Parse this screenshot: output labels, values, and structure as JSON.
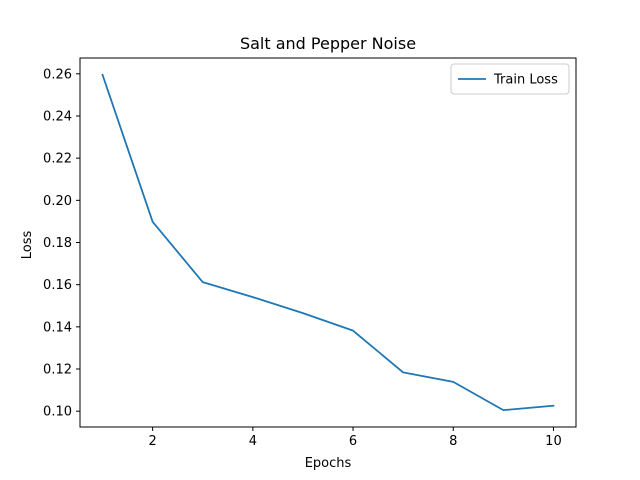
{
  "chart_data": {
    "type": "line",
    "title": "Salt and Pepper Noise",
    "xlabel": "Epochs",
    "ylabel": "Loss",
    "xlim": [
      0.55,
      10.45
    ],
    "ylim": [
      0.0925,
      0.2675
    ],
    "xticks": [
      2,
      4,
      6,
      8,
      10
    ],
    "yticks": [
      0.1,
      0.12,
      0.14,
      0.16,
      0.18,
      0.2,
      0.22,
      0.24,
      0.26
    ],
    "grid": false,
    "legend_position": "top-right",
    "series": [
      {
        "name": "Train Loss",
        "color": "#1f77b4",
        "x": [
          1,
          2,
          3,
          4,
          5,
          6,
          7,
          8,
          9,
          10
        ],
        "y": [
          0.2595,
          0.1898,
          0.1612,
          0.1541,
          0.1465,
          0.1382,
          0.1184,
          0.1139,
          0.1005,
          0.1026
        ]
      }
    ]
  }
}
